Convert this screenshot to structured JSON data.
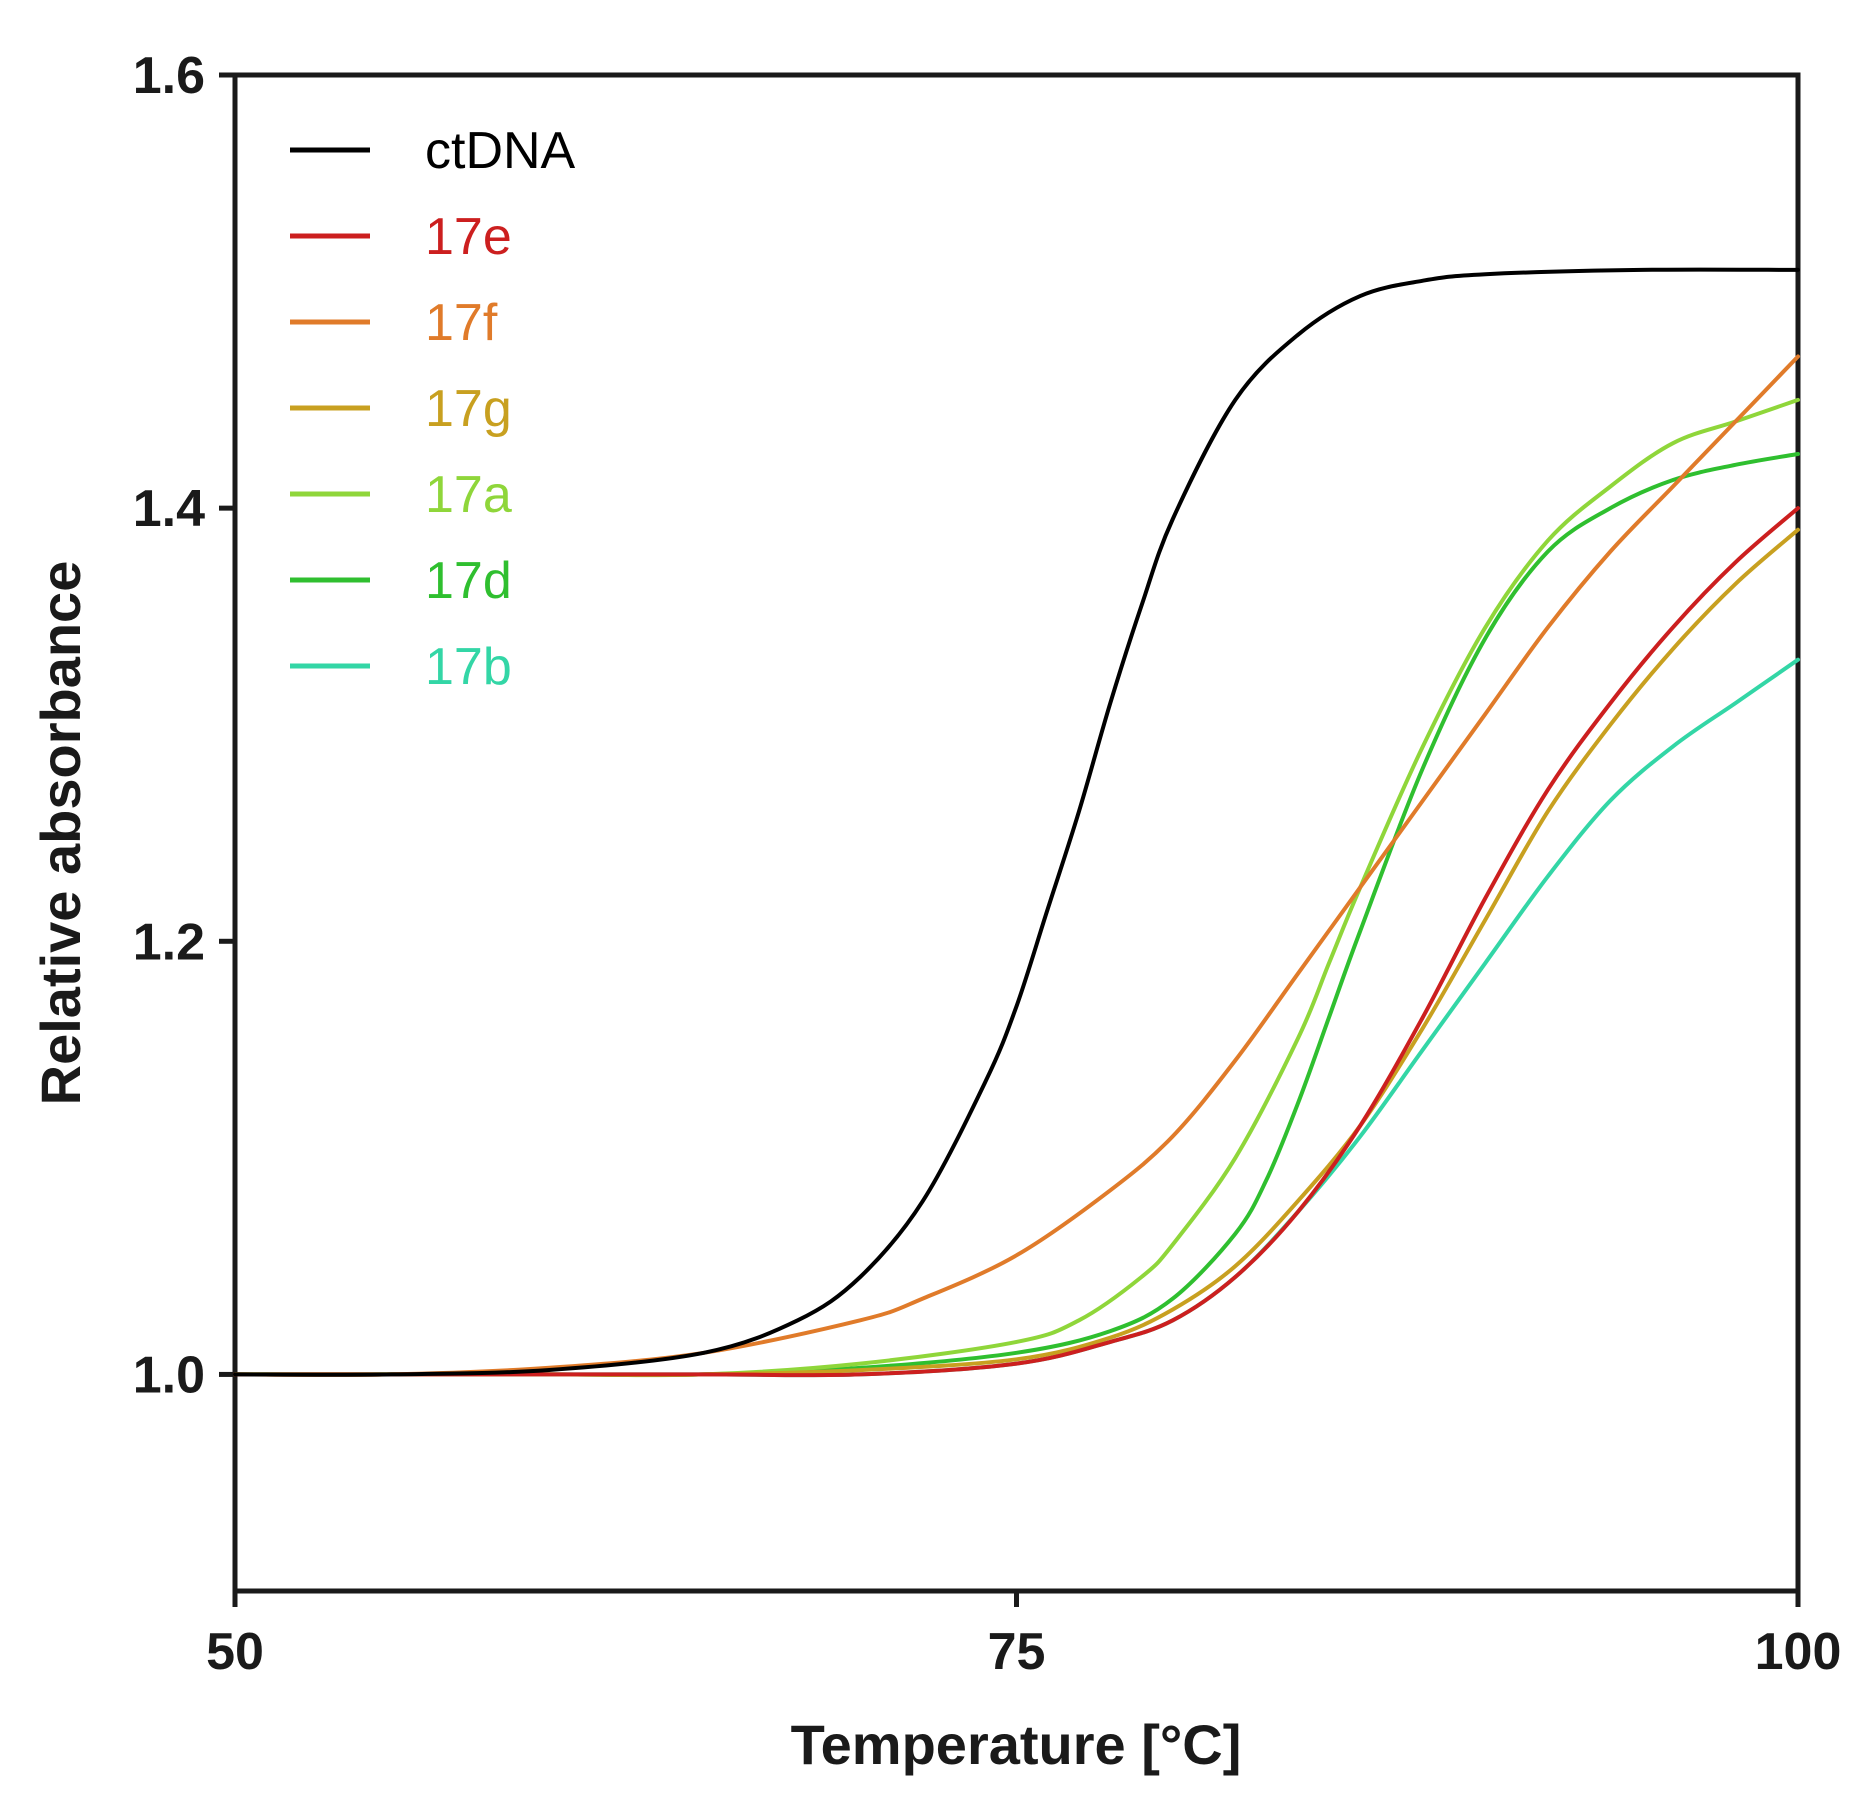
{
  "chart_data": {
    "type": "line",
    "title": "",
    "xlabel": "Temperature [°C]",
    "ylabel": "Relative absorbance",
    "xlim": [
      50,
      100
    ],
    "ylim": [
      0.9,
      1.6
    ],
    "xticks": [
      {
        "value": 50,
        "label": "50"
      },
      {
        "value": 75,
        "label": "75"
      },
      {
        "value": 100,
        "label": "100"
      }
    ],
    "yticks": [
      {
        "value": 1.0,
        "label": "1.0"
      },
      {
        "value": 1.2,
        "label": "1.2"
      },
      {
        "value": 1.4,
        "label": "1.4"
      },
      {
        "value": 1.6,
        "label": "1.6"
      }
    ],
    "grid": false,
    "legend_position": "top-left",
    "series": [
      {
        "name": "ctDNA",
        "color": "#000000",
        "x": [
          50,
          55,
          60,
          65,
          68,
          70,
          72,
          74,
          75,
          76,
          77,
          78,
          79,
          80,
          82,
          84,
          86,
          88,
          90,
          95,
          100
        ],
        "y": [
          1.0,
          1.0,
          1.002,
          1.01,
          1.025,
          1.045,
          1.08,
          1.135,
          1.17,
          1.215,
          1.26,
          1.31,
          1.355,
          1.395,
          1.45,
          1.48,
          1.498,
          1.505,
          1.508,
          1.51,
          1.51
        ]
      },
      {
        "name": "17e",
        "color": "#cc1f1f",
        "x": [
          50,
          55,
          60,
          65,
          70,
          75,
          78,
          80,
          82,
          84,
          86,
          88,
          90,
          92,
          94,
          96,
          98,
          100
        ],
        "y": [
          1.0,
          1.0,
          1.0,
          1.0,
          1.0,
          1.005,
          1.015,
          1.025,
          1.045,
          1.075,
          1.115,
          1.165,
          1.22,
          1.27,
          1.31,
          1.345,
          1.375,
          1.4
        ]
      },
      {
        "name": "17f",
        "color": "#e07b2a",
        "x": [
          50,
          55,
          60,
          65,
          70,
          72,
          75,
          78,
          80,
          82,
          84,
          86,
          88,
          90,
          92,
          94,
          96,
          98,
          100
        ],
        "y": [
          1.0,
          1.0,
          1.003,
          1.01,
          1.025,
          1.035,
          1.055,
          1.085,
          1.11,
          1.145,
          1.185,
          1.225,
          1.265,
          1.305,
          1.345,
          1.38,
          1.41,
          1.44,
          1.47
        ]
      },
      {
        "name": "17g",
        "color": "#c8a020",
        "x": [
          50,
          55,
          60,
          65,
          70,
          75,
          78,
          80,
          82,
          84,
          86,
          88,
          90,
          92,
          94,
          96,
          98,
          100
        ],
        "y": [
          1.0,
          1.0,
          1.0,
          1.0,
          1.002,
          1.007,
          1.017,
          1.03,
          1.05,
          1.08,
          1.115,
          1.16,
          1.21,
          1.26,
          1.3,
          1.335,
          1.365,
          1.39
        ]
      },
      {
        "name": "17a",
        "color": "#8fd63a",
        "x": [
          50,
          55,
          60,
          65,
          70,
          75,
          77,
          79,
          80,
          82,
          84,
          85,
          86,
          88,
          90,
          92,
          94,
          96,
          98,
          100
        ],
        "y": [
          1.0,
          1.0,
          1.0,
          1.0,
          1.005,
          1.015,
          1.025,
          1.045,
          1.06,
          1.1,
          1.155,
          1.19,
          1.225,
          1.29,
          1.345,
          1.385,
          1.41,
          1.43,
          1.44,
          1.45
        ]
      },
      {
        "name": "17d",
        "color": "#2fbf2f",
        "x": [
          50,
          55,
          60,
          65,
          70,
          75,
          78,
          80,
          82,
          83,
          84,
          85,
          86,
          88,
          90,
          92,
          94,
          96,
          98,
          100
        ],
        "y": [
          1.0,
          1.0,
          1.0,
          1.0,
          1.003,
          1.01,
          1.02,
          1.035,
          1.065,
          1.09,
          1.125,
          1.165,
          1.205,
          1.28,
          1.34,
          1.38,
          1.4,
          1.413,
          1.42,
          1.425
        ]
      },
      {
        "name": "17b",
        "color": "#33d6a6",
        "x": [
          50,
          55,
          60,
          65,
          70,
          75,
          78,
          80,
          82,
          84,
          86,
          88,
          90,
          92,
          94,
          96,
          98,
          100
        ],
        "y": [
          1.0,
          1.0,
          1.0,
          1.0,
          1.0,
          1.005,
          1.015,
          1.025,
          1.045,
          1.075,
          1.11,
          1.15,
          1.19,
          1.23,
          1.265,
          1.29,
          1.31,
          1.33
        ]
      }
    ]
  }
}
